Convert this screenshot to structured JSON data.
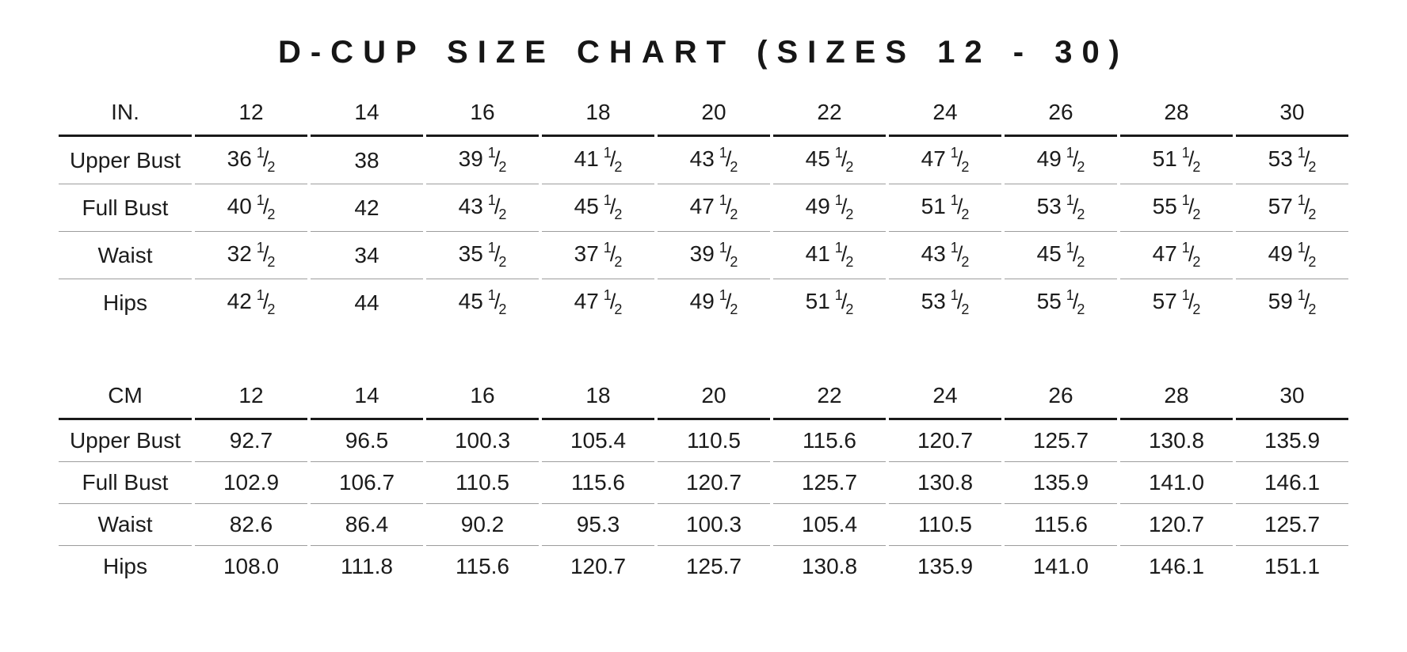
{
  "page": {
    "title": "D-CUP SIZE CHART (SIZES 12 - 30)",
    "background_color": "#ffffff",
    "text_color": "#1b1b1b",
    "header_rule_color": "#1a1a1a",
    "row_rule_color": "#9c9c9c"
  },
  "chart_data": [
    {
      "type": "table",
      "title": "D-CUP SIZE CHART (SIZES 12 - 30)",
      "unit_label": "IN.",
      "columns": [
        "12",
        "14",
        "16",
        "18",
        "20",
        "22",
        "24",
        "26",
        "28",
        "30"
      ],
      "rows": [
        {
          "label": "Upper Bust",
          "values": [
            "36 1/2",
            "38",
            "39 1/2",
            "41 1/2",
            "43 1/2",
            "45 1/2",
            "47 1/2",
            "49 1/2",
            "51 1/2",
            "53 1/2"
          ]
        },
        {
          "label": "Full Bust",
          "values": [
            "40 1/2",
            "42",
            "43 1/2",
            "45 1/2",
            "47 1/2",
            "49 1/2",
            "51 1/2",
            "53 1/2",
            "55 1/2",
            "57 1/2"
          ]
        },
        {
          "label": "Waist",
          "values": [
            "32 1/2",
            "34",
            "35 1/2",
            "37 1/2",
            "39 1/2",
            "41 1/2",
            "43 1/2",
            "45 1/2",
            "47 1/2",
            "49 1/2"
          ]
        },
        {
          "label": "Hips",
          "values": [
            "42 1/2",
            "44",
            "45 1/2",
            "47 1/2",
            "49 1/2",
            "51 1/2",
            "53 1/2",
            "55 1/2",
            "57 1/2",
            "59 1/2"
          ]
        }
      ]
    },
    {
      "type": "table",
      "title": "D-CUP SIZE CHART (SIZES 12 - 30)",
      "unit_label": "CM",
      "columns": [
        "12",
        "14",
        "16",
        "18",
        "20",
        "22",
        "24",
        "26",
        "28",
        "30"
      ],
      "rows": [
        {
          "label": "Upper Bust",
          "values": [
            "92.7",
            "96.5",
            "100.3",
            "105.4",
            "110.5",
            "115.6",
            "120.7",
            "125.7",
            "130.8",
            "135.9"
          ]
        },
        {
          "label": "Full Bust",
          "values": [
            "102.9",
            "106.7",
            "110.5",
            "115.6",
            "120.7",
            "125.7",
            "130.8",
            "135.9",
            "141.0",
            "146.1"
          ]
        },
        {
          "label": "Waist",
          "values": [
            "82.6",
            "86.4",
            "90.2",
            "95.3",
            "100.3",
            "105.4",
            "110.5",
            "115.6",
            "120.7",
            "125.7"
          ]
        },
        {
          "label": "Hips",
          "values": [
            "108.0",
            "111.8",
            "115.6",
            "120.7",
            "125.7",
            "130.8",
            "135.9",
            "141.0",
            "146.1",
            "151.1"
          ]
        }
      ]
    }
  ]
}
